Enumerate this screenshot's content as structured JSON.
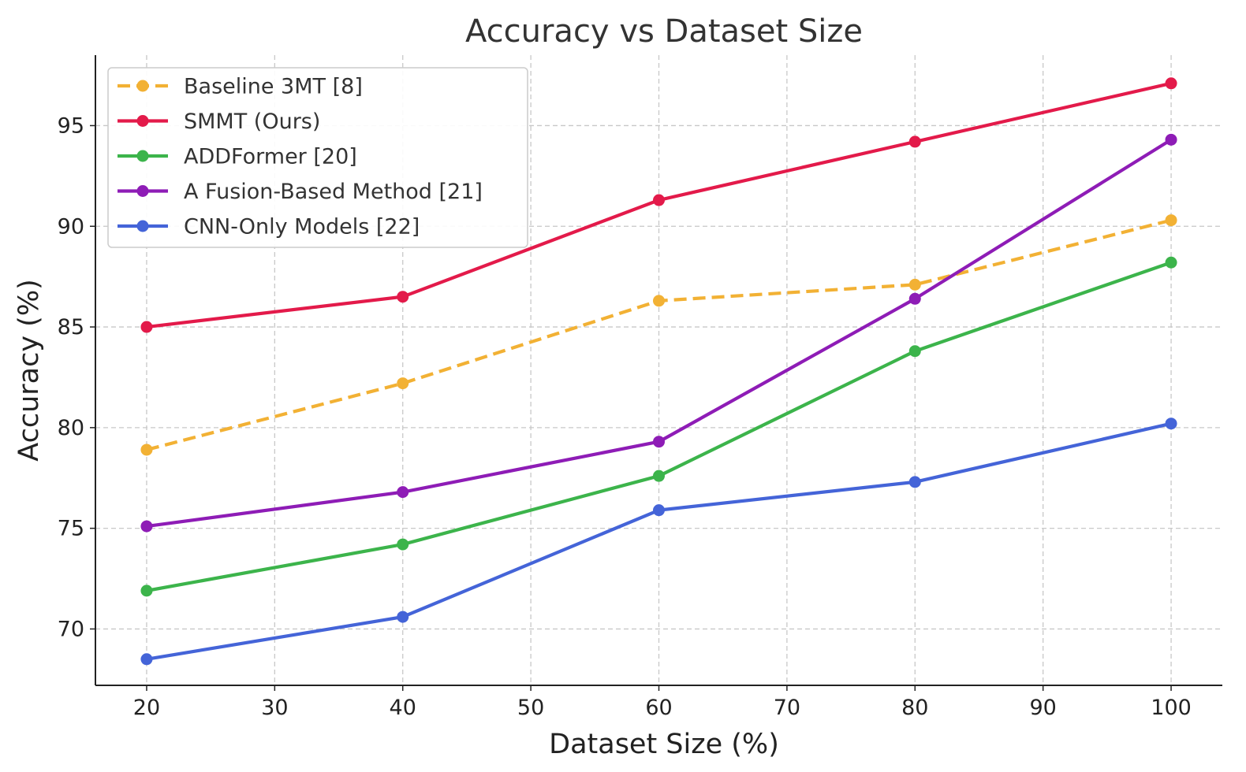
{
  "chart_data": {
    "type": "line",
    "title": "Accuracy vs Dataset Size",
    "xlabel": "Dataset Size (%)",
    "ylabel": "Accuracy (%)",
    "x": [
      20,
      40,
      60,
      80,
      100
    ],
    "xlim": [
      16,
      104
    ],
    "ylim": [
      67.2,
      98.5
    ],
    "xticks": [
      20,
      30,
      40,
      50,
      60,
      70,
      80,
      90,
      100
    ],
    "yticks": [
      70,
      75,
      80,
      85,
      90,
      95
    ],
    "grid": true,
    "legend_position": "upper left",
    "series": [
      {
        "name": "Baseline 3MT [8]",
        "values": [
          78.9,
          82.2,
          86.3,
          87.1,
          90.3
        ],
        "color": "#f2b134",
        "dashed": true
      },
      {
        "name": "SMMT (Ours)",
        "values": [
          85.0,
          86.5,
          91.3,
          94.2,
          97.1
        ],
        "color": "#e31a4a",
        "dashed": false
      },
      {
        "name": "ADDFormer [20]",
        "values": [
          71.9,
          74.2,
          77.6,
          83.8,
          88.2
        ],
        "color": "#3cb44b",
        "dashed": false
      },
      {
        "name": "A Fusion-Based Method [21]",
        "values": [
          75.1,
          76.8,
          79.3,
          86.4,
          94.3
        ],
        "color": "#8e1cb6",
        "dashed": false
      },
      {
        "name": "CNN-Only Models [22]",
        "values": [
          68.5,
          70.6,
          75.9,
          77.3,
          80.2
        ],
        "color": "#4464d8",
        "dashed": false
      }
    ]
  }
}
